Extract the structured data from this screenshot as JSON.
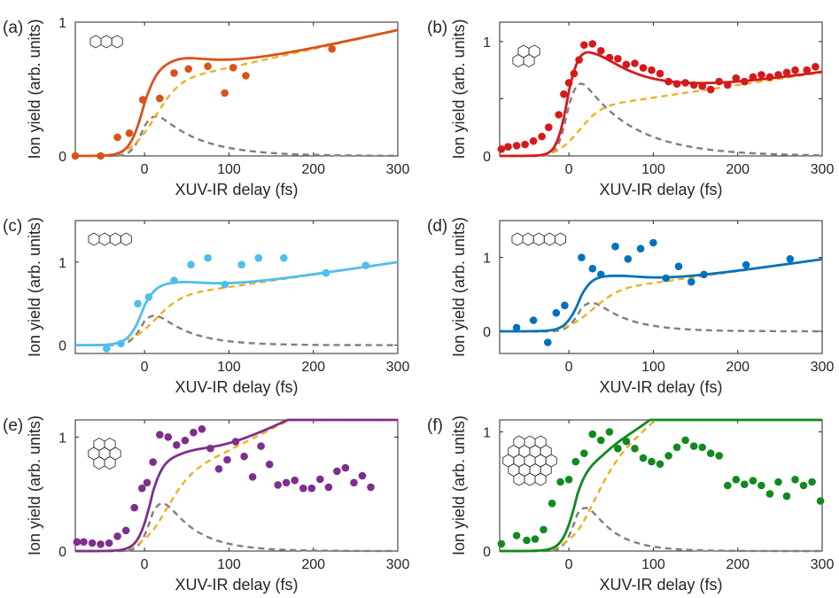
{
  "colors": {
    "axis": "#262626",
    "gaussian_component": "#7f7f7f",
    "step_component": "#edb120"
  },
  "chart_data": [
    {
      "type": "scatter",
      "panel_label": "(a)",
      "xlabel": "XUV-IR delay (fs)",
      "ylabel": "Ion yield (arb. units)",
      "xlim": [
        -82,
        300
      ],
      "ylim": [
        0,
        1
      ],
      "xticks": [
        0,
        100,
        200,
        300
      ],
      "yticks": [
        0,
        1
      ],
      "color": "#d95319",
      "points": [
        [
          -82,
          0.0
        ],
        [
          -52,
          0.0
        ],
        [
          -32,
          0.14
        ],
        [
          -18,
          0.17
        ],
        [
          -2,
          0.42
        ],
        [
          18,
          0.43
        ],
        [
          35,
          0.62
        ],
        [
          52,
          0.65
        ],
        [
          75,
          0.67
        ],
        [
          95,
          0.47
        ],
        [
          105,
          0.66
        ],
        [
          120,
          0.6
        ],
        [
          222,
          0.8
        ]
      ],
      "model": {
        "t0": 0,
        "sigma": 17,
        "tau": 50,
        "A": 0.445,
        "B": 0.52,
        "C": 0.0014
      }
    },
    {
      "type": "scatter",
      "panel_label": "(b)",
      "xlabel": "XUV-IR delay (fs)",
      "ylabel": "Ion yield (arb. units)",
      "xlim": [
        -82,
        300
      ],
      "ylim": [
        0,
        1.17
      ],
      "xticks": [
        0,
        100,
        200,
        300
      ],
      "yticks": [
        0,
        0.5,
        1
      ],
      "color": "#d7191c",
      "points": [
        [
          -80,
          0.06
        ],
        [
          -72,
          0.08
        ],
        [
          -62,
          0.09
        ],
        [
          -52,
          0.1
        ],
        [
          -42,
          0.13
        ],
        [
          -32,
          0.17
        ],
        [
          -24,
          0.25
        ],
        [
          -12,
          0.36
        ],
        [
          -6,
          0.54
        ],
        [
          0,
          0.64
        ],
        [
          6,
          0.72
        ],
        [
          12,
          0.84
        ],
        [
          18,
          0.97
        ],
        [
          28,
          0.98
        ],
        [
          38,
          0.92
        ],
        [
          48,
          0.86
        ],
        [
          58,
          0.85
        ],
        [
          68,
          0.8
        ],
        [
          78,
          0.81
        ],
        [
          88,
          0.77
        ],
        [
          98,
          0.75
        ],
        [
          108,
          0.72
        ],
        [
          118,
          0.65
        ],
        [
          128,
          0.63
        ],
        [
          138,
          0.64
        ],
        [
          148,
          0.62
        ],
        [
          158,
          0.61
        ],
        [
          168,
          0.58
        ],
        [
          178,
          0.65
        ],
        [
          188,
          0.62
        ],
        [
          198,
          0.68
        ],
        [
          208,
          0.65
        ],
        [
          218,
          0.69
        ],
        [
          228,
          0.71
        ],
        [
          238,
          0.69
        ],
        [
          248,
          0.71
        ],
        [
          258,
          0.73
        ],
        [
          268,
          0.75
        ],
        [
          282,
          0.75
        ],
        [
          292,
          0.78
        ]
      ],
      "model": {
        "t0": 0,
        "sigma": 15,
        "tau": 60,
        "A": 0.88,
        "B": 0.4,
        "C": 0.0011
      }
    },
    {
      "type": "scatter",
      "panel_label": "(c)",
      "xlabel": "XUV-IR delay (fs)",
      "ylabel": "Ion yield (arb. units)",
      "xlim": [
        -82,
        300
      ],
      "ylim": [
        -0.1,
        1.5
      ],
      "xticks": [
        0,
        100,
        200,
        300
      ],
      "yticks": [
        0,
        1
      ],
      "color": "#4dbeee",
      "points": [
        [
          -45,
          -0.04
        ],
        [
          -28,
          0.02
        ],
        [
          -8,
          0.5
        ],
        [
          5,
          0.58
        ],
        [
          35,
          0.78
        ],
        [
          55,
          0.97
        ],
        [
          75,
          1.05
        ],
        [
          95,
          0.73
        ],
        [
          115,
          0.97
        ],
        [
          135,
          1.05
        ],
        [
          165,
          1.05
        ],
        [
          215,
          0.87
        ],
        [
          262,
          0.96
        ]
      ],
      "model": {
        "t0": 0,
        "sigma": 18,
        "tau": 40,
        "A": 0.58,
        "B": 0.55,
        "C": 0.0015
      }
    },
    {
      "type": "scatter",
      "panel_label": "(d)",
      "xlabel": "XUV-IR delay (fs)",
      "ylabel": "Ion yield (arb. units)",
      "xlim": [
        -82,
        300
      ],
      "ylim": [
        -0.3,
        1.5
      ],
      "xticks": [
        0,
        100,
        200,
        300
      ],
      "yticks": [
        0,
        1
      ],
      "color": "#0072bd",
      "points": [
        [
          -62,
          0.05
        ],
        [
          -42,
          0.15
        ],
        [
          -25,
          -0.15
        ],
        [
          -15,
          0.25
        ],
        [
          -5,
          0.35
        ],
        [
          15,
          1.0
        ],
        [
          28,
          0.85
        ],
        [
          38,
          0.77
        ],
        [
          55,
          1.15
        ],
        [
          70,
          0.98
        ],
        [
          85,
          1.12
        ],
        [
          100,
          1.2
        ],
        [
          115,
          0.72
        ],
        [
          130,
          0.88
        ],
        [
          145,
          0.67
        ],
        [
          160,
          0.77
        ],
        [
          210,
          0.9
        ],
        [
          262,
          0.98
        ]
      ],
      "model": {
        "t0": 15,
        "sigma": 18,
        "tau": 40,
        "A": 0.63,
        "B": 0.52,
        "C": 0.0016
      }
    },
    {
      "type": "scatter",
      "panel_label": "(e)",
      "xlabel": "XUV-IR delay (fs)",
      "ylabel": "Ion yield (arb. units)",
      "xlim": [
        -82,
        300
      ],
      "ylim": [
        0,
        1.15
      ],
      "xticks": [
        0,
        100,
        200,
        300
      ],
      "yticks": [
        0,
        1
      ],
      "color": "#7e2f8e",
      "points": [
        [
          -80,
          0.08
        ],
        [
          -72,
          0.08
        ],
        [
          -62,
          0.07
        ],
        [
          -52,
          0.06
        ],
        [
          -42,
          0.07
        ],
        [
          -32,
          0.13
        ],
        [
          -22,
          0.18
        ],
        [
          -12,
          0.38
        ],
        [
          -3,
          0.55
        ],
        [
          3,
          0.6
        ],
        [
          10,
          0.78
        ],
        [
          18,
          1.02
        ],
        [
          28,
          1.0
        ],
        [
          38,
          0.93
        ],
        [
          48,
          0.97
        ],
        [
          58,
          1.04
        ],
        [
          68,
          1.07
        ],
        [
          78,
          0.9
        ],
        [
          88,
          0.72
        ],
        [
          98,
          0.8
        ],
        [
          108,
          0.96
        ],
        [
          118,
          0.83
        ],
        [
          128,
          0.65
        ],
        [
          138,
          0.92
        ],
        [
          148,
          0.76
        ],
        [
          158,
          0.58
        ],
        [
          168,
          0.6
        ],
        [
          178,
          0.62
        ],
        [
          188,
          0.55
        ],
        [
          198,
          0.55
        ],
        [
          208,
          0.63
        ],
        [
          218,
          0.56
        ],
        [
          228,
          0.7
        ],
        [
          238,
          0.73
        ],
        [
          248,
          0.6
        ],
        [
          258,
          0.66
        ],
        [
          268,
          0.56
        ]
      ],
      "model": {
        "t0": 10,
        "sigma": 17,
        "tau": 38,
        "A": 0.68,
        "B": 0.55,
        "C": 0.0037
      }
    },
    {
      "type": "scatter",
      "panel_label": "(f)",
      "xlabel": "XUV-IR delay (fs)",
      "ylabel": "Ion yield (arb. units)",
      "xlim": [
        -82,
        300
      ],
      "ylim": [
        0,
        1.1
      ],
      "xticks": [
        0,
        100,
        200,
        300
      ],
      "yticks": [
        0,
        1
      ],
      "color": "#108a1e",
      "points": [
        [
          -80,
          0.06
        ],
        [
          -62,
          0.13
        ],
        [
          -50,
          0.09
        ],
        [
          -40,
          0.1
        ],
        [
          -30,
          0.18
        ],
        [
          -20,
          0.4
        ],
        [
          -10,
          0.58
        ],
        [
          0,
          0.6
        ],
        [
          8,
          0.75
        ],
        [
          18,
          0.82
        ],
        [
          28,
          0.98
        ],
        [
          38,
          0.93
        ],
        [
          48,
          1.0
        ],
        [
          58,
          0.86
        ],
        [
          68,
          0.92
        ],
        [
          78,
          0.86
        ],
        [
          88,
          0.78
        ],
        [
          98,
          0.75
        ],
        [
          108,
          0.73
        ],
        [
          118,
          0.8
        ],
        [
          128,
          0.87
        ],
        [
          138,
          0.93
        ],
        [
          148,
          0.88
        ],
        [
          158,
          0.87
        ],
        [
          168,
          0.82
        ],
        [
          178,
          0.8
        ],
        [
          188,
          0.55
        ],
        [
          198,
          0.6
        ],
        [
          208,
          0.56
        ],
        [
          218,
          0.59
        ],
        [
          228,
          0.55
        ],
        [
          238,
          0.48
        ],
        [
          248,
          0.58
        ],
        [
          258,
          0.46
        ],
        [
          268,
          0.6
        ],
        [
          278,
          0.55
        ],
        [
          288,
          0.58
        ],
        [
          298,
          0.42
        ]
      ],
      "model": {
        "t0": 10,
        "sigma": 17,
        "tau": 32,
        "A": 0.62,
        "B": 0.5,
        "C": 0.0065
      }
    }
  ]
}
